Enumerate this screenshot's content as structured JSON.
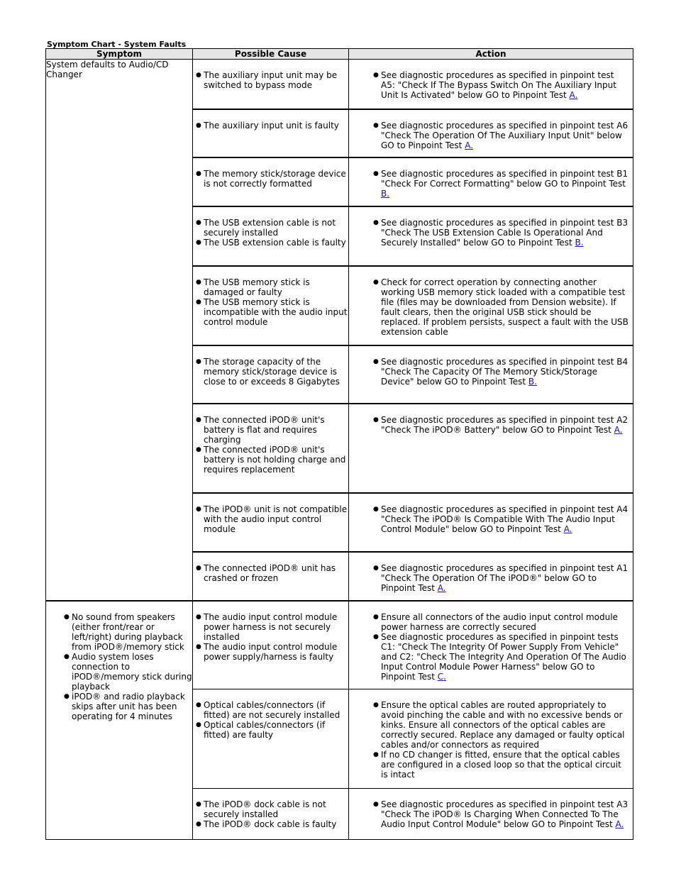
{
  "title": "Symptom Chart - System Faults",
  "headers": {
    "symptom": "Symptom",
    "cause": "Possible Cause",
    "action": "Action"
  },
  "group1": {
    "symptom": "System defaults to Audio/CD Changer",
    "rows": [
      {
        "causes": [
          "The auxiliary input unit may be switched to bypass mode"
        ],
        "action": "See diagnostic procedures as specified in pinpoint test A5: \"Check If The Bypass Switch On The Auxiliary Input Unit Is Activated\" below GO to Pinpoint Test",
        "link": "A."
      },
      {
        "causes": [
          "The auxiliary input unit is faulty"
        ],
        "action": "See diagnostic procedures as specified in pinpoint test A6 \"Check The Operation Of The Auxiliary Input Unit\" below GO to Pinpoint Test",
        "link": "A."
      },
      {
        "causes": [
          "The memory stick/storage device is not correctly formatted"
        ],
        "action": "See diagnostic procedures as specified in pinpoint test B1 \"Check For Correct Formatting\" below GO to Pinpoint Test",
        "link": "B."
      },
      {
        "causes": [
          "The USB extension cable is not securely installed",
          "The USB extension cable is faulty"
        ],
        "action": "See diagnostic procedures as specified in pinpoint test B3 \"Check The USB Extension Cable Is Operational And Securely Installed\" below GO to Pinpoint Test",
        "link": "B."
      },
      {
        "causes": [
          "The USB memory stick is damaged or faulty",
          "The USB memory stick is incompatible with the audio input control module"
        ],
        "action": "Check for correct operation by connecting another working USB memory stick loaded with a compatible test file (files may be downloaded from Dension website). If fault clears, then the original USB stick should be replaced. If problem persists, suspect a fault with the USB extension cable",
        "link": ""
      },
      {
        "causes": [
          "The storage capacity of the memory stick/storage device is close to or exceeds 8 Gigabytes"
        ],
        "action": "See diagnostic procedures as specified in pinpoint test B4 \"Check The Capacity Of The Memory Stick/Storage Device\" below GO to Pinpoint Test",
        "link": "B."
      },
      {
        "causes": [
          "The connected iPOD® unit's battery is flat and requires charging",
          "The connected iPOD® unit's battery is not holding charge and requires replacement"
        ],
        "action": "See diagnostic procedures as specified in pinpoint test A2 \"Check The iPOD® Battery\" below GO to Pinpoint Test",
        "link": "A."
      },
      {
        "causes": [
          "The iPOD® unit is not compatible with the audio input control module"
        ],
        "action": "See diagnostic procedures as specified in pinpoint test A4 \"Check The iPOD® Is Compatible With The Audio Input Control Module\" below GO to Pinpoint Test",
        "link": "A."
      },
      {
        "causes": [
          "The connected iPOD® unit has crashed or frozen"
        ],
        "action": "See diagnostic procedures as specified in pinpoint test A1 \"Check The Operation Of The iPOD®\" below GO to Pinpoint Test",
        "link": "A."
      }
    ]
  },
  "group2": {
    "symptoms": [
      "No sound from speakers (either front/rear or left/right) during playback from iPOD®/memory stick",
      "Audio system loses connection to iPOD®/memory stick during playback",
      "iPOD® and radio playback skips after unit has been operating for 4 minutes"
    ],
    "row1": {
      "causes": [
        "The audio input control module power harness is not securely installed",
        "The audio input control module power supply/harness is faulty"
      ],
      "actions": [
        "Ensure all connectors of the audio input control module power harness are correctly secured",
        "See diagnostic procedures as specified in pinpoint tests C1: \"Check The Integrity Of Power Supply From Vehicle\" and C2: \"Check The Integrity And Operation Of The Audio Input Control Module Power Harness\" below GO to Pinpoint Test"
      ],
      "link": "C."
    },
    "row2": {
      "causes": [
        "Optical cables/connectors (if fitted) are not securely installed",
        "Optical cables/connectors (if fitted) are faulty"
      ],
      "actions": [
        "Ensure the optical cables are routed appropriately to avoid pinching the cable and with no excessive bends or kinks. Ensure all connectors of the optical cables are correctly secured. Replace any damaged or faulty optical cables and/or connectors as required",
        "If no CD changer is fitted, ensure that the optical cables are configured in a closed loop so that the optical circuit is intact"
      ]
    },
    "row3": {
      "causes": [
        "The iPOD® dock cable is not securely installed",
        "The iPOD® dock cable is faulty"
      ],
      "action": "See diagnostic procedures as specified in pinpoint test A3 \"Check The iPOD® Is Charging When Connected To The Audio Input Control Module\" below GO to Pinpoint Test",
      "link": "A."
    }
  }
}
